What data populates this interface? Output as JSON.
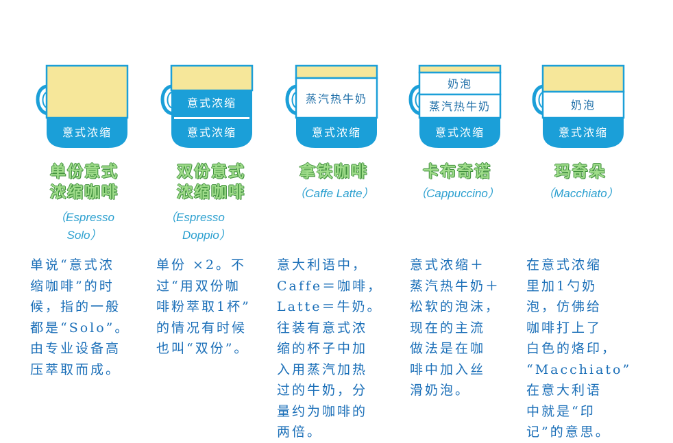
{
  "colors": {
    "espresso": "#1b9fd8",
    "milk": "#ffffff",
    "foam": "#f6e79a",
    "title_fill": "#9fdc8a",
    "title_outline": "#3f8f3c",
    "subtitle": "#2a9fcf",
    "description": "#1b6fb8"
  },
  "drinks": [
    {
      "layers": [
        "意式浓缩"
      ],
      "title_line1": "单份意式",
      "title_line2": "浓缩咖啡",
      "subtitle_line1": "（Espresso",
      "subtitle_line2": "Solo）",
      "description": "单说“意式浓\n缩咖啡”的时\n候，指的一般\n都是“Solo”。\n由专业设备高\n压萃取而成。"
    },
    {
      "layers": [
        "意式浓缩",
        "意式浓缩"
      ],
      "title_line1": "双份意式",
      "title_line2": "浓缩咖啡",
      "subtitle_line1": "（Espresso",
      "subtitle_line2": "Doppio）",
      "description": "单份 ×2。不\n过“用双份咖\n啡粉萃取1杯”\n的情况有时候\n也叫“双份”。"
    },
    {
      "layers": [
        "意式浓缩",
        "蒸汽热牛奶"
      ],
      "title_line1": "拿铁咖啡",
      "subtitle_line1": "（Caffe Latte）",
      "description": "意大利语中，\nCaffe＝咖啡，\nLatte＝牛奶。\n往装有意式浓\n缩的杯子中加\n入用蒸汽加热\n过的牛奶，分\n量约为咖啡的\n两倍。"
    },
    {
      "layers": [
        "意式浓缩",
        "蒸汽热牛奶",
        "奶泡"
      ],
      "title_line1": "卡布奇诺",
      "subtitle_line1": "（Cappuccino）",
      "description": "意式浓缩＋\n蒸汽热牛奶＋\n松软的泡沫，\n现在的主流\n做法是在咖\n啡中加入丝\n滑奶泡。"
    },
    {
      "layers": [
        "意式浓缩",
        "奶泡"
      ],
      "title_line1": "玛奇朵",
      "subtitle_line1": "（Macchiato）",
      "description": "在意式浓缩\n里加1勺奶\n泡，仿佛给\n咖啡打上了\n白色的烙印，\n“Macchiato”\n在意大利语\n中就是“印\n记”的意思。"
    }
  ]
}
